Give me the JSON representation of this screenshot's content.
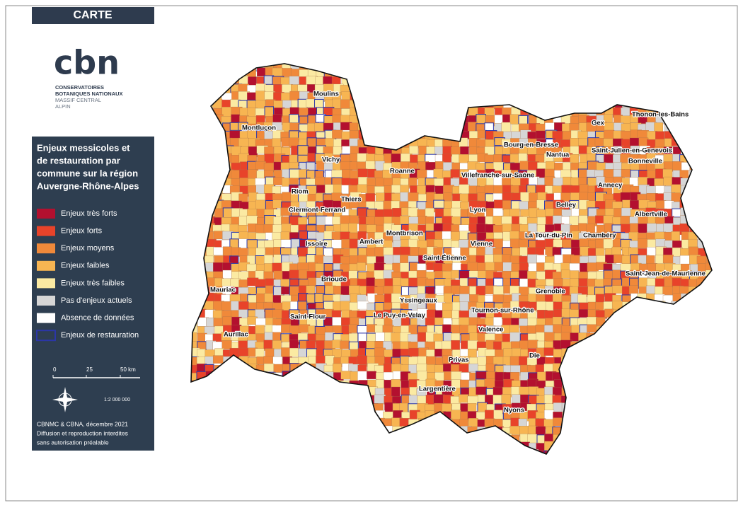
{
  "header": {
    "tab": "CARTE"
  },
  "logo": {
    "mark": "cbn",
    "lines": [
      "CONSERVATOIRES",
      "BOTANIQUES NATIONAUX",
      "MASSIF CENTRAL",
      "ALPIN"
    ]
  },
  "legend": {
    "title_lines": [
      "Enjeux messicoles et",
      "de restauration par",
      "commune sur la région",
      "Auvergne-Rhône-Alpes"
    ],
    "items": [
      {
        "label": "Enjeux très forts",
        "color": "#b3102f"
      },
      {
        "label": "Enjeux forts",
        "color": "#e8432a"
      },
      {
        "label": "Enjeux moyens",
        "color": "#f0893a"
      },
      {
        "label": "Enjeux faibles",
        "color": "#f7b552"
      },
      {
        "label": "Enjeux très faibles",
        "color": "#fbeaa2"
      },
      {
        "label": "Pas d'enjeux actuels",
        "color": "#d6d6d6"
      },
      {
        "label": "Absence de données",
        "color": "#ffffff"
      },
      {
        "label": "Enjeux de restauration",
        "color": "#2b36a8",
        "outline": true
      }
    ]
  },
  "scale": {
    "labels": [
      "0",
      "25",
      "50 km"
    ],
    "ratio": "1:2 000 000"
  },
  "credits": [
    "CBNMC & CBNA, décembre 2021",
    "Diffusion et reproduction interdites",
    "sans autorisation préalable"
  ],
  "cities": [
    "Moulins",
    "Montluçon",
    "Vichy",
    "Riom",
    "Thiers",
    "Clermont-Ferrand",
    "Roanne",
    "Villefranche-sur-Saône",
    "Bourg-en-Bresse",
    "Nantua",
    "Gex",
    "Thonon-les-Bains",
    "Saint-Julien-en-Genevois",
    "Bonneville",
    "Annecy",
    "Lyon",
    "Belley",
    "Albertville",
    "Chambéry",
    "La Tour-du-Pin",
    "Montbrison",
    "Issoire",
    "Ambert",
    "Vienne",
    "Saint-Étienne",
    "Saint-Jean-de-Maurienne",
    "Brioude",
    "Mauriac",
    "Grenoble",
    "Yssingeaux",
    "Tournon-sur-Rhône",
    "Saint-Flour",
    "Le Puy-en-Velay",
    "Aurillac",
    "Valence",
    "Die",
    "Privas",
    "Largentière",
    "Nyons"
  ]
}
